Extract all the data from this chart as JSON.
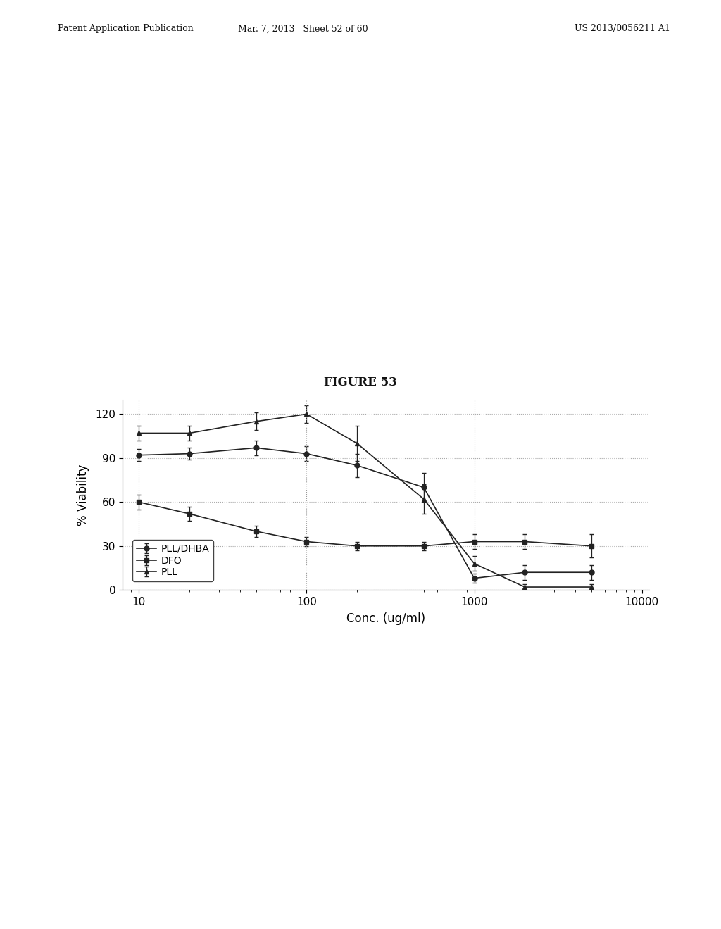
{
  "title": "FIGURE 53",
  "xlabel": "Conc. (ug/ml)",
  "ylabel": "% Viability",
  "ylim": [
    0,
    130
  ],
  "yticks": [
    0,
    30,
    60,
    90,
    120
  ],
  "background_color": "#ffffff",
  "series": {
    "PLL/DHBA": {
      "x": [
        10,
        20,
        50,
        100,
        200,
        500,
        1000,
        2000,
        5000
      ],
      "y": [
        92,
        93,
        97,
        93,
        85,
        70,
        8,
        12,
        12
      ],
      "yerr": [
        4,
        4,
        5,
        5,
        8,
        10,
        3,
        5,
        5
      ],
      "marker": "o",
      "color": "#222222",
      "linestyle": "-"
    },
    "DFO": {
      "x": [
        10,
        20,
        50,
        100,
        200,
        500,
        1000,
        2000,
        5000
      ],
      "y": [
        60,
        52,
        40,
        33,
        30,
        30,
        33,
        33,
        30
      ],
      "yerr": [
        5,
        5,
        4,
        3,
        3,
        3,
        5,
        5,
        8
      ],
      "marker": "s",
      "color": "#222222",
      "linestyle": "-"
    },
    "PLL": {
      "x": [
        10,
        20,
        50,
        100,
        200,
        500,
        1000,
        2000,
        5000
      ],
      "y": [
        107,
        107,
        115,
        120,
        100,
        62,
        18,
        2,
        2
      ],
      "yerr": [
        5,
        5,
        6,
        6,
        12,
        10,
        5,
        2,
        2
      ],
      "marker": "^",
      "color": "#222222",
      "linestyle": "-"
    }
  },
  "legend_labels": [
    "PLL/DHBA",
    "DFO",
    "PLL"
  ],
  "header_left": "Patent Application Publication",
  "header_mid": "Mar. 7, 2013   Sheet 52 of 60",
  "header_right": "US 2013/0056211 A1"
}
